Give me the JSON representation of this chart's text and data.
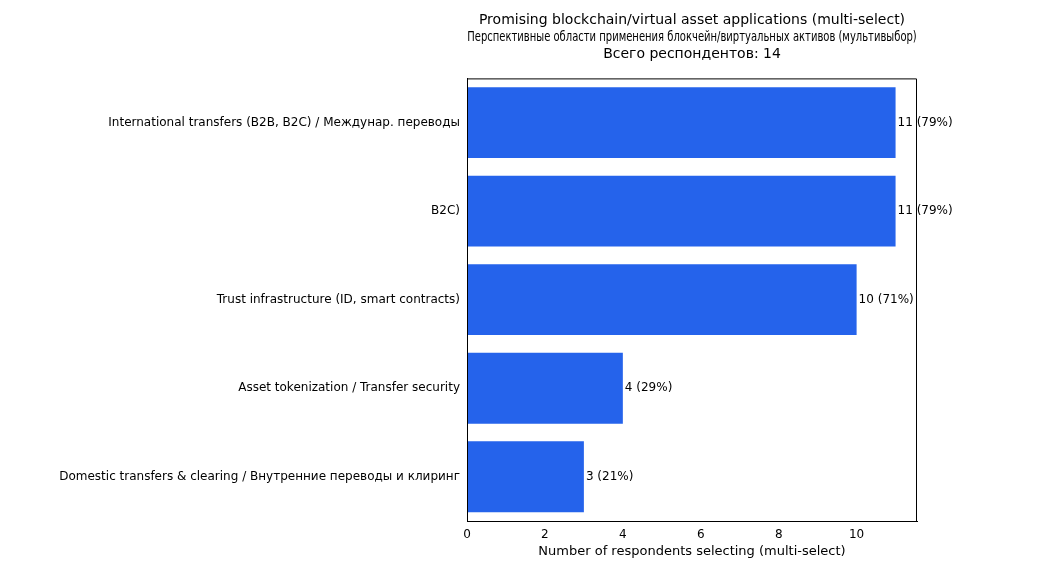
{
  "chart_data": {
    "type": "bar",
    "orientation": "horizontal",
    "title": [
      "Promising blockchain/virtual asset applications (multi-select)",
      "Перспективные области применения блокчейн/виртуальных активов (мультивыбор)",
      "Всего респондентов: 14"
    ],
    "xlabel": "Number of respondents selecting (multi-select)",
    "categories": [
      "International transfers (B2B, B2C) / Междунар. переводы",
      "B2C)",
      "Trust infrastructure (ID, smart contracts)",
      "Asset tokenization / Transfer security",
      "Domestic transfers & clearing / Внутренние переводы и клиринг"
    ],
    "values": [
      11,
      11,
      10,
      4,
      3
    ],
    "value_labels": [
      "11 (79%)",
      "11 (79%)",
      "10 (71%)",
      "4 (29%)",
      "3 (21%)"
    ],
    "color": "#2563eb",
    "xlim": [
      0,
      11.55
    ],
    "xticks": [
      0,
      2,
      4,
      6,
      8,
      10
    ],
    "grid": false,
    "legend": false
  }
}
